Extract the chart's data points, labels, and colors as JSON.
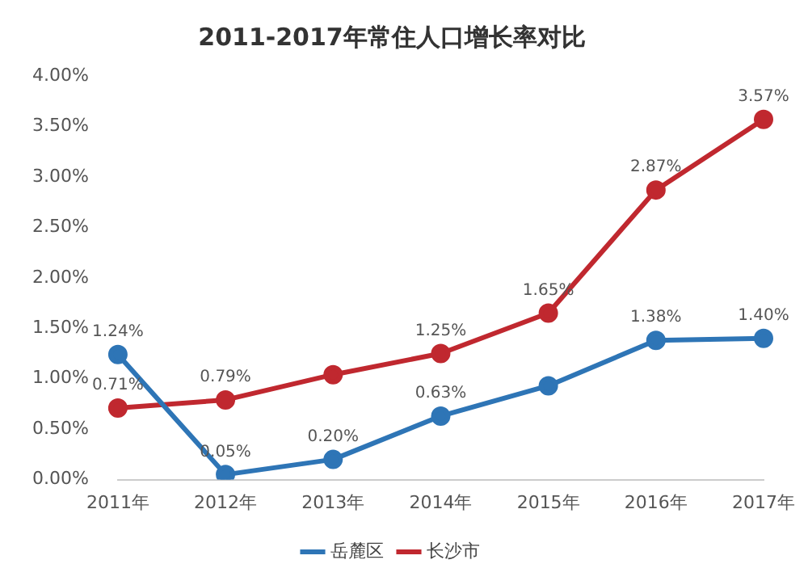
{
  "chart_data": {
    "type": "line",
    "title": "2011-2017年常住人口增长率对比",
    "categories": [
      "2011年",
      "2012年",
      "2013年",
      "2014年",
      "2015年",
      "2016年",
      "2017年"
    ],
    "series": [
      {
        "name": "岳麓区",
        "color": "#2e75b6",
        "values": [
          1.24,
          0.05,
          0.2,
          0.63,
          0.93,
          1.38,
          1.4
        ],
        "value_labels": [
          "1.24%",
          "0.05%",
          "0.20%",
          "0.63%",
          null,
          "1.38%",
          "1.40%"
        ]
      },
      {
        "name": "长沙市",
        "color": "#c0282f",
        "values": [
          0.71,
          0.79,
          1.04,
          1.25,
          1.65,
          2.87,
          3.57
        ],
        "value_labels": [
          "0.71%",
          "0.79%",
          null,
          "1.25%",
          "1.65%",
          "2.87%",
          "3.57%"
        ]
      }
    ],
    "ylim": [
      0,
      4
    ],
    "yticks": [
      {
        "value": 0,
        "label": "0.00%"
      },
      {
        "value": 0.5,
        "label": "0.50%"
      },
      {
        "value": 1,
        "label": "1.00%"
      },
      {
        "value": 1.5,
        "label": "1.50%"
      },
      {
        "value": 2,
        "label": "2.00%"
      },
      {
        "value": 2.5,
        "label": "2.50%"
      },
      {
        "value": 3,
        "label": "3.00%"
      },
      {
        "value": 3.5,
        "label": "3.50%"
      },
      {
        "value": 4,
        "label": "4.00%"
      }
    ],
    "grid": false,
    "legend": "bottom",
    "marker": "circle",
    "line_style": "solid"
  }
}
